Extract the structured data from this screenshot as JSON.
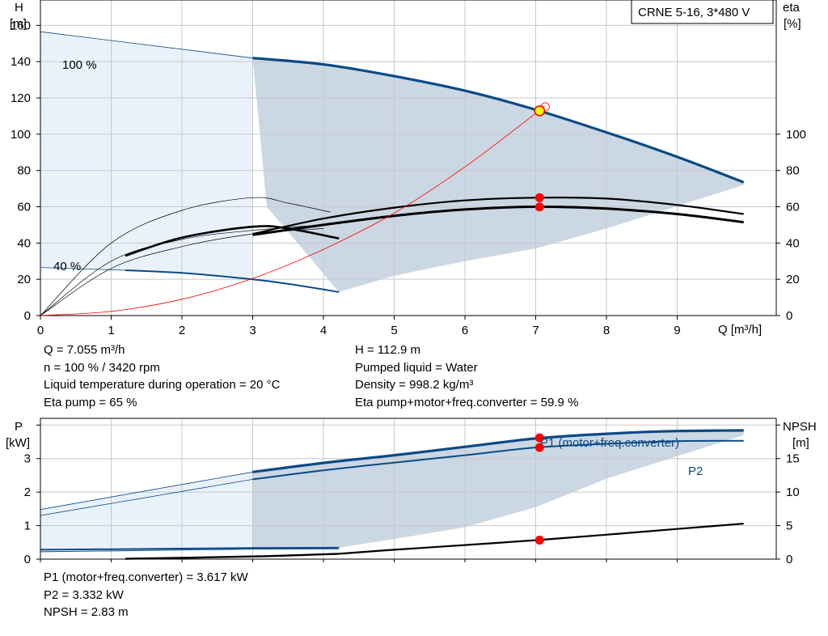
{
  "badge": "CRNE 5-16, 3*480 V",
  "top_chart_axes": {
    "left_label": "H",
    "left_unit": "[m]",
    "right_label": "eta",
    "right_unit": "[%]",
    "x_label": "Q [m³/h]"
  },
  "bottom_chart_axes": {
    "left_label": "P",
    "left_unit": "[kW]",
    "right_label": "NPSH",
    "right_unit": "[m]"
  },
  "duty_info": {
    "left": [
      "Q = 7.055 m³/h",
      "n = 100 % / 3420 rpm",
      "Liquid temperature during operation = 20 °C",
      "Eta pump = 65 %"
    ],
    "right": [
      "H = 112.9 m",
      "Pumped liquid = Water",
      "Density = 998.2 kg/m³",
      "Eta pump+motor+freq.converter = 59.9 %"
    ]
  },
  "power_info": [
    "P1 (motor+freq.converter) = 3.617 kW",
    "P2 = 3.332 kW",
    "NPSH = 2.83 m"
  ],
  "colors": {
    "curve_blue": "#0a4a86",
    "envelope_fill": "#cbd7e3",
    "light_fill": "#e9f2fb",
    "system_curve": "#ff0000",
    "operating_point": "#ff0000",
    "duty_point_fill": "#ffff00",
    "grid": "#c8c8c8"
  },
  "chart_data": [
    {
      "type": "line",
      "name": "head-efficiency",
      "xlabel": "Q [m³/h]",
      "ylabel": "H [m]",
      "y2label": "eta [%]",
      "xlim": [
        0,
        10.4
      ],
      "ylim": [
        0,
        174
      ],
      "y2lim": [
        0,
        174
      ],
      "grid": true,
      "x_ticks": [
        0,
        1,
        2,
        3,
        4,
        5,
        6,
        7,
        8,
        9
      ],
      "y_ticks": [
        0,
        20,
        40,
        60,
        80,
        100,
        120,
        140,
        160
      ],
      "y2_ticks": [
        0,
        20,
        40,
        60,
        80,
        100
      ],
      "curve_labels": [
        "100 %",
        "40 %"
      ],
      "head_100": [
        [
          0,
          156.5
        ],
        [
          3,
          142
        ],
        [
          4,
          138.5
        ],
        [
          5,
          132
        ],
        [
          6,
          124
        ],
        [
          7,
          113.5
        ],
        [
          8,
          101
        ],
        [
          9,
          87.5
        ],
        [
          9.94,
          73.5
        ]
      ],
      "head_40": [
        [
          0,
          26.5
        ],
        [
          1.2,
          25
        ],
        [
          2,
          23.5
        ],
        [
          3,
          20
        ],
        [
          3.5,
          17.5
        ],
        [
          4.22,
          13
        ]
      ],
      "eta_pump": [
        [
          3,
          45
        ],
        [
          4,
          53.5
        ],
        [
          5,
          59.5
        ],
        [
          6,
          63.5
        ],
        [
          7,
          65
        ],
        [
          8,
          64.5
        ],
        [
          9,
          61
        ],
        [
          9.94,
          56
        ]
      ],
      "eta_total": [
        [
          3,
          44.5
        ],
        [
          4,
          50
        ],
        [
          5,
          55
        ],
        [
          6,
          58.5
        ],
        [
          7,
          60
        ],
        [
          8,
          59
        ],
        [
          9,
          56
        ],
        [
          9.94,
          51.5
        ]
      ],
      "eta_40_pump": [
        [
          1.2,
          33
        ],
        [
          2,
          43
        ],
        [
          3,
          49
        ],
        [
          3.5,
          48
        ],
        [
          4.22,
          42.5
        ]
      ],
      "eta_40_total": [
        [
          1.2,
          32
        ],
        [
          2,
          41.5
        ],
        [
          3,
          48
        ],
        [
          3.5,
          48
        ],
        [
          4.22,
          42.5
        ]
      ],
      "eta_thin_curves": [
        [
          [
            0,
            0
          ],
          [
            1,
            40
          ],
          [
            2,
            58
          ],
          [
            3,
            65
          ],
          [
            3.5,
            62
          ],
          [
            4.1,
            57
          ]
        ],
        [
          [
            0,
            0
          ],
          [
            1,
            30
          ],
          [
            2,
            42
          ],
          [
            3,
            47
          ],
          [
            4,
            50
          ]
        ],
        [
          [
            0,
            0
          ],
          [
            1,
            26
          ],
          [
            2,
            38
          ],
          [
            3,
            45
          ],
          [
            4,
            48
          ]
        ]
      ],
      "system_curve": [
        [
          0,
          0
        ],
        [
          1,
          2.3
        ],
        [
          2,
          9
        ],
        [
          3,
          20.5
        ],
        [
          4,
          36.5
        ],
        [
          5,
          56.5
        ],
        [
          6,
          82
        ],
        [
          7,
          111.5
        ],
        [
          7.12,
          115.5
        ]
      ],
      "duty_point": {
        "q": 7.055,
        "h": 112.9,
        "eta_pump": 65,
        "eta_total": 59.9
      }
    },
    {
      "type": "line",
      "name": "power-npsh",
      "ylabel": "P [kW]",
      "y2label": "NPSH [m]",
      "xlim": [
        0,
        10.4
      ],
      "ylim": [
        0,
        4.2
      ],
      "y2lim": [
        0,
        21
      ],
      "grid": true,
      "y_ticks": [
        0,
        1,
        2,
        3
      ],
      "y2_ticks": [
        0,
        5,
        10,
        15
      ],
      "series_labels": [
        "P1 (motor+freq.converter)",
        "P2"
      ],
      "p1": [
        [
          0,
          1.48
        ],
        [
          3,
          2.6
        ],
        [
          4,
          2.87
        ],
        [
          5,
          3.1
        ],
        [
          6,
          3.35
        ],
        [
          7,
          3.6
        ],
        [
          8,
          3.74
        ],
        [
          9,
          3.82
        ],
        [
          9.94,
          3.84
        ]
      ],
      "p2": [
        [
          0,
          1.3
        ],
        [
          3,
          2.38
        ],
        [
          4,
          2.65
        ],
        [
          5,
          2.88
        ],
        [
          6,
          3.1
        ],
        [
          7,
          3.33
        ],
        [
          8,
          3.44
        ],
        [
          9,
          3.52
        ],
        [
          9.94,
          3.53
        ]
      ],
      "p1_40": [
        [
          0,
          0.28
        ],
        [
          1.2,
          0.3
        ],
        [
          3,
          0.33
        ],
        [
          4.22,
          0.34
        ]
      ],
      "p2_40": [
        [
          0,
          0.22
        ],
        [
          1.2,
          0.25
        ],
        [
          3,
          0.3
        ],
        [
          4.22,
          0.31
        ]
      ],
      "npsh": [
        [
          1.2,
          0.05
        ],
        [
          3,
          0.4
        ],
        [
          4.22,
          0.8
        ],
        [
          5,
          1.4
        ],
        [
          6,
          2.1
        ],
        [
          7,
          2.83
        ],
        [
          8,
          3.65
        ],
        [
          9,
          4.5
        ],
        [
          9.94,
          5.3
        ]
      ],
      "duty_point": {
        "q": 7.055,
        "p1": 3.617,
        "p2": 3.332,
        "npsh": 2.83
      }
    }
  ]
}
